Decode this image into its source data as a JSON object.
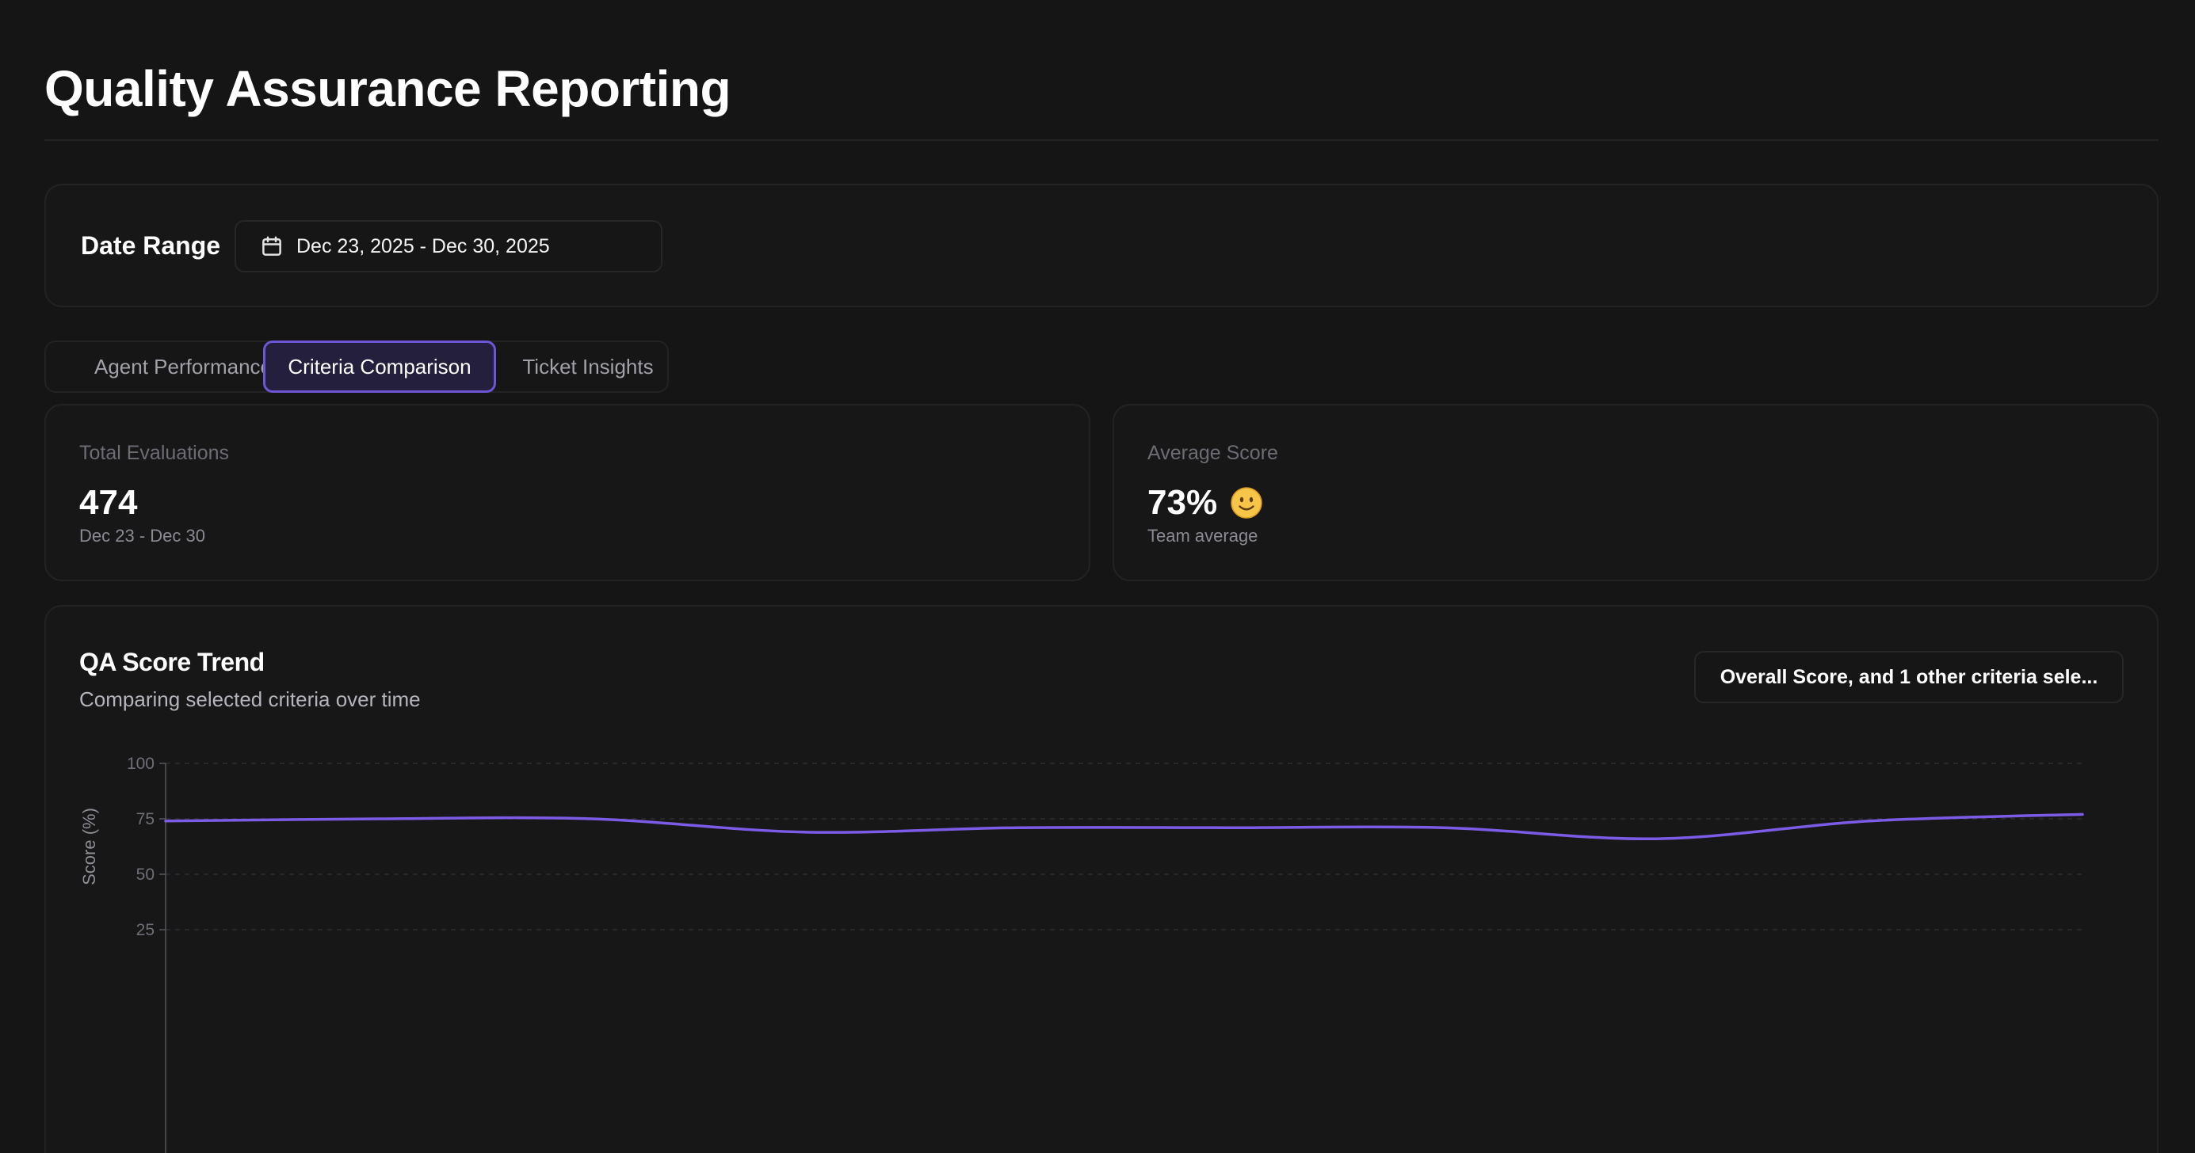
{
  "page": {
    "title": "Quality Assurance Reporting"
  },
  "date_range": {
    "label": "Date Range",
    "value": "Dec 23, 2025 - Dec 30, 2025",
    "icon": "calendar-icon"
  },
  "tabs": [
    {
      "label": "Agent Performance",
      "active": false
    },
    {
      "label": "Criteria Comparison",
      "active": true
    },
    {
      "label": "Ticket Insights",
      "active": false
    }
  ],
  "metrics": {
    "total_evaluations": {
      "label": "Total Evaluations",
      "value": "474",
      "sub": "Dec 23 - Dec 30"
    },
    "average_score": {
      "label": "Average Score",
      "value": "73%",
      "icon": "smiley-face-icon",
      "sub": "Team average"
    }
  },
  "trend": {
    "title": "QA Score Trend",
    "subtitle": "Comparing selected criteria over time",
    "criteria_select_label": "Overall Score, and 1 other criteria sele..."
  },
  "colors": {
    "accent": "#7c5ce6",
    "active_tab_border": "#6e55d6",
    "background": "#151516"
  },
  "chart_data": {
    "type": "line",
    "ylabel": "Score (%)",
    "y_ticks": [
      "100",
      "75",
      "50",
      "25"
    ],
    "ylim": [
      0,
      100
    ],
    "grid": true,
    "series": [
      {
        "color": "#7c5ce6",
        "values": [
          74,
          75,
          75,
          69,
          71,
          71,
          71,
          66,
          74,
          77
        ]
      }
    ]
  }
}
